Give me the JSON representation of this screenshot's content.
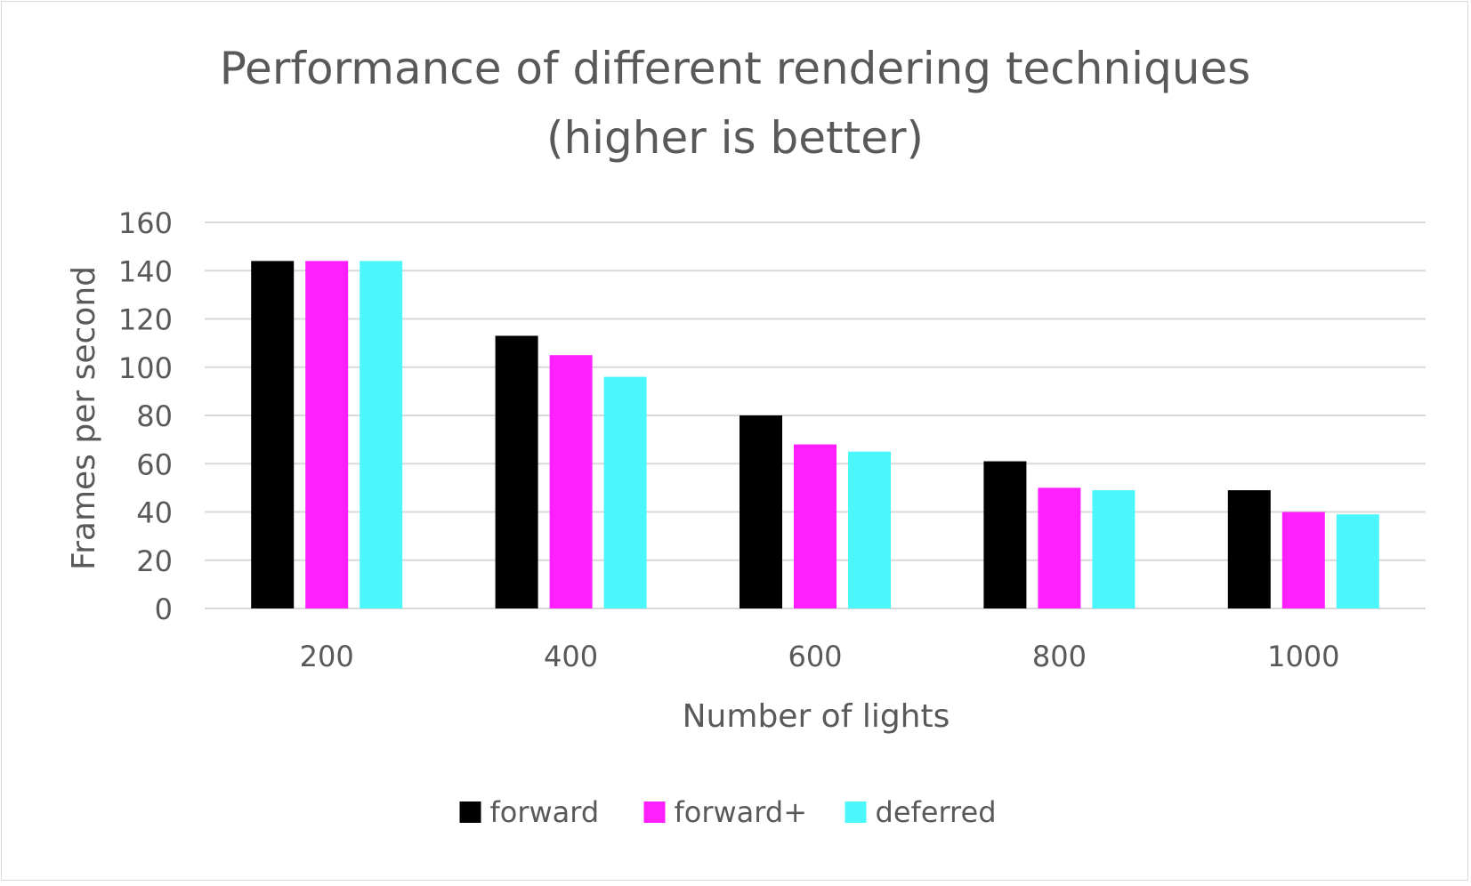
{
  "chart_data": {
    "type": "bar",
    "title": "Performance of different rendering techniques",
    "subtitle": "(higher is better)",
    "xlabel": "Number of lights",
    "ylabel": "Frames per second",
    "categories": [
      "200",
      "400",
      "600",
      "800",
      "1000"
    ],
    "series": [
      {
        "name": "forward",
        "color": "#000000",
        "values": [
          144,
          113,
          80,
          61,
          49
        ]
      },
      {
        "name": "forward+",
        "color": "#ff1fff",
        "values": [
          144,
          105,
          68,
          50,
          40
        ]
      },
      {
        "name": "deferred",
        "color": "#4cf7fc",
        "values": [
          144,
          96,
          65,
          49,
          39
        ]
      }
    ],
    "ylim": [
      0,
      160
    ],
    "yticks": [
      "0",
      "20",
      "40",
      "60",
      "80",
      "100",
      "120",
      "140",
      "160"
    ],
    "grid": true,
    "legend_position": "bottom"
  }
}
